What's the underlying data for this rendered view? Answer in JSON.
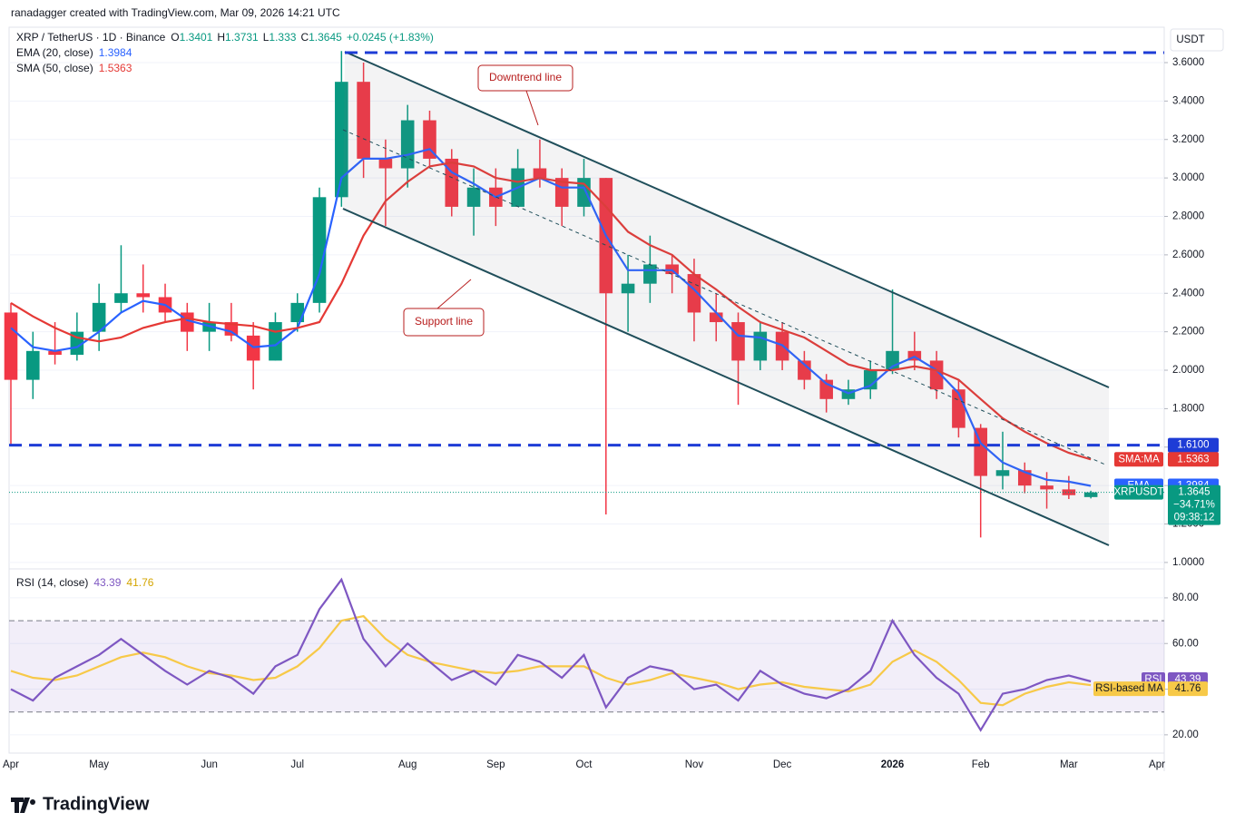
{
  "watermark": "ranadagger created with TradingView.com, Mar 09, 2026 14:21 UTC",
  "brand": "TradingView",
  "chart_data": [
    {
      "type": "candlestick",
      "title": "XRP / TetherUS · 1D · Binance",
      "ohlc_labels": [
        "O",
        "H",
        "L",
        "C"
      ],
      "change": "+0.0245 (+1.83%)",
      "y_unit": "USDT",
      "up_color": "#089981",
      "down_color": "#f23645",
      "categories": [
        "Apr",
        null,
        null,
        null,
        "May",
        null,
        null,
        null,
        null,
        "Jun",
        null,
        null,
        null,
        "Jul",
        null,
        null,
        null,
        null,
        "Aug",
        null,
        null,
        null,
        "Sep",
        null,
        null,
        null,
        "Oct",
        null,
        null,
        null,
        null,
        "Nov",
        null,
        null,
        null,
        "Dec",
        null,
        null,
        null,
        null,
        "2026",
        null,
        null,
        null,
        "Feb",
        null,
        null,
        null,
        "Mar",
        null,
        null,
        null,
        "Apr"
      ],
      "open": [
        2.3,
        1.95,
        2.1,
        2.08,
        2.2,
        2.35,
        2.4,
        2.38,
        2.3,
        2.2,
        2.25,
        2.18,
        2.05,
        2.25,
        2.35,
        2.9,
        3.5,
        3.1,
        3.05,
        3.3,
        3.1,
        2.85,
        2.95,
        2.85,
        3.05,
        3.0,
        2.85,
        3.0,
        2.4,
        2.45,
        2.55,
        2.5,
        2.3,
        2.25,
        2.05,
        2.2,
        2.05,
        1.95,
        1.85,
        1.9,
        2.0,
        2.1,
        2.05,
        1.9,
        1.7,
        1.45,
        1.48,
        1.4,
        1.38,
        1.3401,
        null,
        null,
        null
      ],
      "high": [
        2.35,
        2.2,
        2.25,
        2.3,
        2.45,
        2.65,
        2.55,
        2.45,
        2.35,
        2.35,
        2.35,
        2.25,
        2.3,
        2.4,
        2.95,
        3.66,
        3.6,
        3.2,
        3.38,
        3.35,
        3.15,
        3.05,
        3.05,
        3.15,
        3.2,
        3.05,
        3.1,
        3.0,
        2.6,
        2.7,
        2.6,
        2.58,
        2.4,
        2.3,
        2.25,
        2.25,
        2.1,
        1.98,
        1.95,
        2.05,
        2.42,
        2.2,
        2.1,
        1.95,
        1.72,
        1.68,
        1.52,
        1.47,
        1.45,
        1.3731,
        null,
        null,
        null
      ],
      "low": [
        1.61,
        1.85,
        2.03,
        2.05,
        2.1,
        2.3,
        2.3,
        2.25,
        2.1,
        2.1,
        2.15,
        1.9,
        2.05,
        2.2,
        2.3,
        2.85,
        3.0,
        2.75,
        2.95,
        3.05,
        2.8,
        2.7,
        2.75,
        2.85,
        2.95,
        2.75,
        2.8,
        1.25,
        2.2,
        2.35,
        2.4,
        2.15,
        2.15,
        1.82,
        2.0,
        2.0,
        1.9,
        1.78,
        1.82,
        1.85,
        1.98,
        2.0,
        1.85,
        1.65,
        1.13,
        1.38,
        1.36,
        1.28,
        1.33,
        1.333,
        null,
        null,
        null
      ],
      "close": [
        1.95,
        2.1,
        2.08,
        2.2,
        2.35,
        2.4,
        2.38,
        2.3,
        2.2,
        2.25,
        2.18,
        2.05,
        2.25,
        2.35,
        2.9,
        3.5,
        3.1,
        3.05,
        3.3,
        3.1,
        2.85,
        2.95,
        2.85,
        3.05,
        3.0,
        2.85,
        3.0,
        2.4,
        2.45,
        2.55,
        2.5,
        2.3,
        2.25,
        2.05,
        2.2,
        2.05,
        1.95,
        1.85,
        1.9,
        2.0,
        2.1,
        2.05,
        1.9,
        1.7,
        1.45,
        1.48,
        1.4,
        1.38,
        1.35,
        1.3645,
        null,
        null,
        null
      ],
      "series": [
        {
          "name": "EMA (20, close)",
          "tag": "EMA",
          "color": "#2962ff",
          "values": [
            2.22,
            2.12,
            2.1,
            2.12,
            2.2,
            2.3,
            2.36,
            2.34,
            2.26,
            2.23,
            2.2,
            2.12,
            2.13,
            2.22,
            2.5,
            3.0,
            3.1,
            3.1,
            3.12,
            3.15,
            3.03,
            2.97,
            2.9,
            2.95,
            3.0,
            2.95,
            2.95,
            2.7,
            2.52,
            2.52,
            2.52,
            2.42,
            2.3,
            2.18,
            2.17,
            2.13,
            2.03,
            1.93,
            1.88,
            1.92,
            2.02,
            2.07,
            2.0,
            1.88,
            1.62,
            1.52,
            1.47,
            1.43,
            1.42,
            1.3984,
            null,
            null,
            null
          ]
        },
        {
          "name": "SMA (50, close)",
          "tag": "SMA:MA",
          "color": "#e53935",
          "values": [
            2.35,
            2.28,
            2.22,
            2.17,
            2.15,
            2.17,
            2.22,
            2.25,
            2.27,
            2.25,
            2.24,
            2.23,
            2.2,
            2.22,
            2.25,
            2.45,
            2.7,
            2.88,
            2.98,
            3.06,
            3.08,
            3.06,
            3.0,
            2.98,
            3.0,
            2.98,
            2.97,
            2.85,
            2.72,
            2.65,
            2.6,
            2.5,
            2.42,
            2.33,
            2.25,
            2.21,
            2.17,
            2.1,
            2.03,
            2.0,
            2.0,
            2.02,
            2.0,
            1.95,
            1.85,
            1.75,
            1.68,
            1.62,
            1.57,
            1.5363,
            null,
            null,
            null
          ]
        }
      ],
      "symbol_tag": "XRPUSDT",
      "change_tag": "−34.71%",
      "countdown": "09:38:12",
      "levels": [
        {
          "value": 1.61,
          "label": "1.6100",
          "color": "#1e3cd6"
        }
      ],
      "annotations": [
        "Downtrend line",
        "Support line"
      ],
      "ylim": [
        0.976,
        3.784
      ],
      "yticks": [
        {
          "value": 1.0,
          "label": "1.0000"
        },
        {
          "value": 1.2,
          "label": "1.2000"
        },
        {
          "value": 1.4,
          "label": "1.4000"
        },
        {
          "value": 1.6,
          "label": "1.6000"
        },
        {
          "value": 1.8,
          "label": "1.8000"
        },
        {
          "value": 2.0,
          "label": "2.0000"
        },
        {
          "value": 2.2,
          "label": "2.2000"
        },
        {
          "value": 2.4,
          "label": "2.4000"
        },
        {
          "value": 2.6,
          "label": "2.6000"
        },
        {
          "value": 2.8,
          "label": "2.8000"
        },
        {
          "value": 3.0,
          "label": "3.0000"
        },
        {
          "value": 3.2,
          "label": "3.2000"
        },
        {
          "value": 3.4,
          "label": "3.4000"
        },
        {
          "value": 3.6,
          "label": "3.6000"
        }
      ],
      "grid": true
    },
    {
      "type": "line",
      "title": "RSI (14, close)",
      "series": [
        {
          "name": "RSI",
          "color": "#7e57c2",
          "values": [
            40,
            35,
            45,
            50,
            55,
            62,
            55,
            48,
            42,
            48,
            45,
            38,
            50,
            55,
            75,
            88,
            62,
            50,
            60,
            52,
            44,
            48,
            42,
            55,
            52,
            45,
            55,
            32,
            45,
            50,
            48,
            40,
            42,
            35,
            48,
            42,
            38,
            36,
            40,
            48,
            70,
            55,
            45,
            38,
            22,
            38,
            40,
            44,
            46,
            43.39,
            null,
            null,
            null
          ]
        },
        {
          "name": "RSI-based MA",
          "color": "#f7c948",
          "values": [
            48,
            45,
            44,
            46,
            50,
            54,
            56,
            54,
            50,
            47,
            46,
            44,
            45,
            50,
            58,
            70,
            72,
            62,
            55,
            52,
            50,
            48,
            47,
            48,
            50,
            50,
            50,
            45,
            42,
            44,
            47,
            45,
            43,
            40,
            42,
            43,
            41,
            40,
            39,
            42,
            52,
            57,
            52,
            44,
            34,
            33,
            38,
            41,
            43,
            41.76,
            null,
            null,
            null
          ]
        }
      ],
      "band": [
        30,
        70
      ],
      "ylim": [
        12,
        91.5
      ],
      "yticks": [
        {
          "value": 20,
          "label": "20.00"
        },
        {
          "value": 40,
          "label": "40.00"
        },
        {
          "value": 60,
          "label": "60.00"
        },
        {
          "value": 80,
          "label": "80.00"
        }
      ],
      "grid": true
    }
  ]
}
